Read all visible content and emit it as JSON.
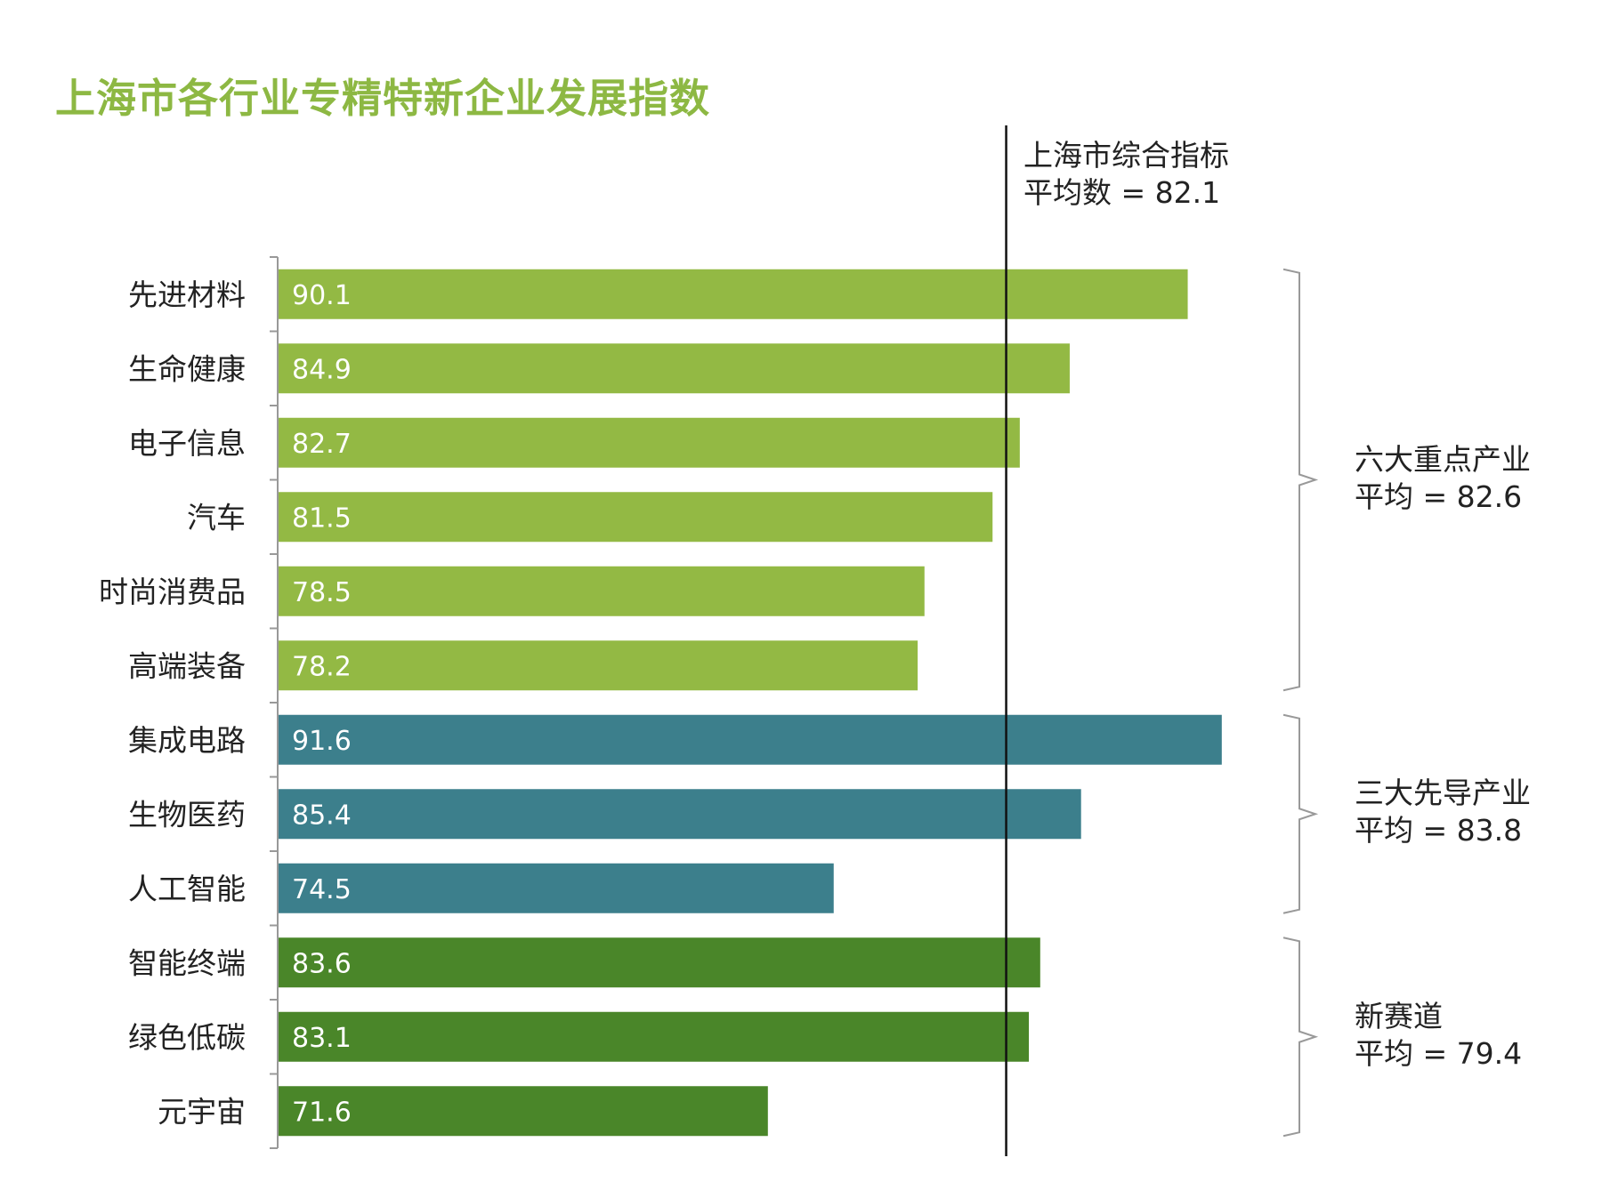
{
  "chart_data": {
    "type": "bar",
    "orientation": "horizontal",
    "title": "上海市各行业专精特新企业发展指数",
    "xlim": [
      50,
      95
    ],
    "categories": [
      "先进材料",
      "生命健康",
      "电子信息",
      "汽车",
      "时尚消费品",
      "高端装备",
      "集成电路",
      "生物医药",
      "人工智能",
      "智能终端",
      "绿色低碳",
      "元宇宙"
    ],
    "values": [
      90.1,
      84.9,
      82.7,
      81.5,
      78.5,
      78.2,
      91.6,
      85.4,
      74.5,
      83.6,
      83.1,
      71.6
    ],
    "value_labels": [
      "90.1",
      "84.9",
      "82.7",
      "81.5",
      "78.5",
      "78.2",
      "91.6",
      "85.4",
      "74.5",
      "83.6",
      "83.1",
      "71.6"
    ],
    "groups": [
      {
        "name": "六大重点产业",
        "avg_label": "平均 = 82.6",
        "avg": 82.6,
        "start": 0,
        "end": 5,
        "color": "#93B944"
      },
      {
        "name": "三大先导产业",
        "avg_label": "平均 = 83.8",
        "avg": 83.8,
        "start": 6,
        "end": 8,
        "color": "#3C7F8C"
      },
      {
        "name": "新赛道",
        "avg_label": "平均 = 79.4",
        "avg": 79.4,
        "start": 9,
        "end": 11,
        "color": "#4A8629"
      }
    ],
    "reference_line": {
      "value": 82.1,
      "label1": "上海市综合指标",
      "label2": "平均数 = 82.1"
    }
  }
}
